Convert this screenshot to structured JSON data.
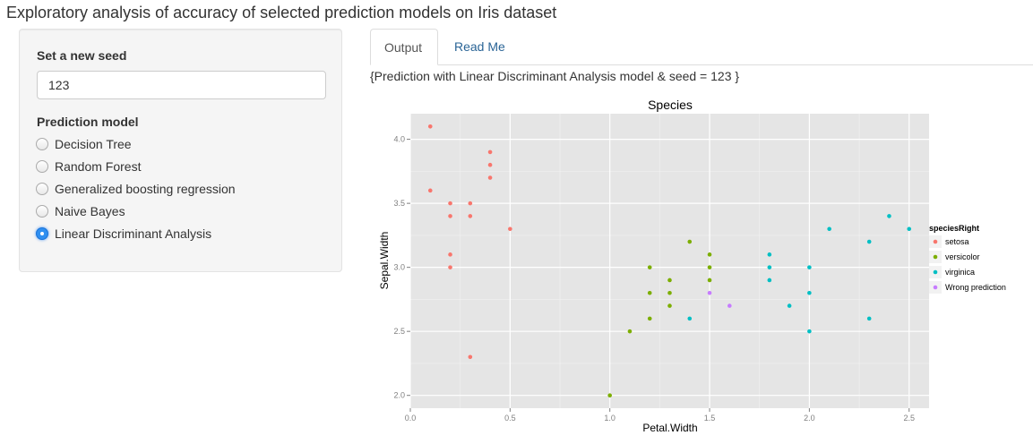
{
  "app": {
    "title": "Exploratory analysis of accuracy of selected prediction models on Iris dataset"
  },
  "sidebar": {
    "seed_label": "Set a new seed",
    "seed_value": "123",
    "model_label": "Prediction model",
    "models": [
      {
        "label": "Decision Tree",
        "selected": false
      },
      {
        "label": "Random Forest",
        "selected": false
      },
      {
        "label": "Generalized boosting regression",
        "selected": false
      },
      {
        "label": "Naive Bayes",
        "selected": false
      },
      {
        "label": "Linear Discriminant Analysis",
        "selected": true
      }
    ]
  },
  "tabs": [
    {
      "label": "Output",
      "active": true
    },
    {
      "label": "Read Me",
      "active": false
    }
  ],
  "main": {
    "caption": "{Prediction with Linear Discriminant Analysis model & seed = 123 }"
  },
  "colors": {
    "setosa": "#f8766d",
    "versicolor": "#7cae00",
    "virginica": "#00bfc4",
    "wrong": "#c77cff",
    "panel": "#e5e5e5",
    "link": "#2a6496",
    "radio_selected": "#2f8ff0"
  },
  "chart_data": {
    "type": "scatter",
    "title": "Species",
    "xlabel": "Petal.Width",
    "ylabel": "Sepal.Width",
    "xlim": [
      0,
      2.6
    ],
    "ylim": [
      1.9,
      4.2
    ],
    "x_ticks": [
      0.0,
      0.5,
      1.0,
      1.5,
      2.0,
      2.5
    ],
    "x_tick_labels": [
      "0.0",
      "0.5",
      "1.0",
      "1.5",
      "2.0",
      "2.5"
    ],
    "y_ticks": [
      2.0,
      2.5,
      3.0,
      3.5,
      4.0
    ],
    "y_tick_labels": [
      "2.0",
      "2.5",
      "3.0",
      "3.5",
      "4.0"
    ],
    "grid": true,
    "legend": {
      "title": "speciesRight",
      "placement": "right",
      "entries": [
        {
          "label": "setosa",
          "color": "#f8766d"
        },
        {
          "label": "versicolor",
          "color": "#7cae00"
        },
        {
          "label": "virginica",
          "color": "#00bfc4"
        },
        {
          "label": "Wrong prediction",
          "color": "#c77cff"
        }
      ]
    },
    "series": [
      {
        "name": "setosa",
        "points": [
          [
            0.1,
            4.1
          ],
          [
            0.4,
            3.9
          ],
          [
            0.4,
            3.8
          ],
          [
            0.4,
            3.7
          ],
          [
            0.1,
            3.6
          ],
          [
            0.2,
            3.5
          ],
          [
            0.3,
            3.5
          ],
          [
            0.2,
            3.4
          ],
          [
            0.3,
            3.4
          ],
          [
            0.5,
            3.3
          ],
          [
            0.2,
            3.1
          ],
          [
            0.2,
            3.0
          ],
          [
            0.3,
            2.3
          ]
        ]
      },
      {
        "name": "versicolor",
        "points": [
          [
            1.4,
            3.2
          ],
          [
            1.5,
            3.1
          ],
          [
            1.2,
            3.0
          ],
          [
            1.5,
            3.0
          ],
          [
            1.3,
            2.9
          ],
          [
            1.5,
            2.9
          ],
          [
            1.2,
            2.8
          ],
          [
            1.3,
            2.8
          ],
          [
            1.3,
            2.7
          ],
          [
            1.2,
            2.6
          ],
          [
            1.1,
            2.5
          ],
          [
            1.0,
            2.0
          ]
        ]
      },
      {
        "name": "virginica",
        "points": [
          [
            2.4,
            3.4
          ],
          [
            2.1,
            3.3
          ],
          [
            2.5,
            3.3
          ],
          [
            2.3,
            3.2
          ],
          [
            1.8,
            3.1
          ],
          [
            1.8,
            3.0
          ],
          [
            2.0,
            3.0
          ],
          [
            1.8,
            2.9
          ],
          [
            2.0,
            2.8
          ],
          [
            1.9,
            2.7
          ],
          [
            1.4,
            2.6
          ],
          [
            2.3,
            2.6
          ],
          [
            2.0,
            2.5
          ]
        ]
      },
      {
        "name": "Wrong prediction",
        "points": [
          [
            1.5,
            2.8
          ],
          [
            1.6,
            2.7
          ]
        ]
      }
    ]
  }
}
